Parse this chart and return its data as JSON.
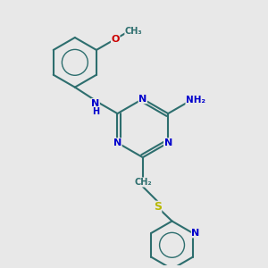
{
  "bg_color": "#e8e8e8",
  "bond_color": "#2d6e6e",
  "bond_width": 1.5,
  "N_color": "#0000cc",
  "O_color": "#cc0000",
  "S_color": "#b8b800",
  "C_color": "#2d6e6e",
  "font_size": 8,
  "fig_size": [
    3.0,
    3.0
  ],
  "dpi": 100,
  "xlim": [
    -4,
    4
  ],
  "ylim": [
    -4.5,
    4.5
  ]
}
